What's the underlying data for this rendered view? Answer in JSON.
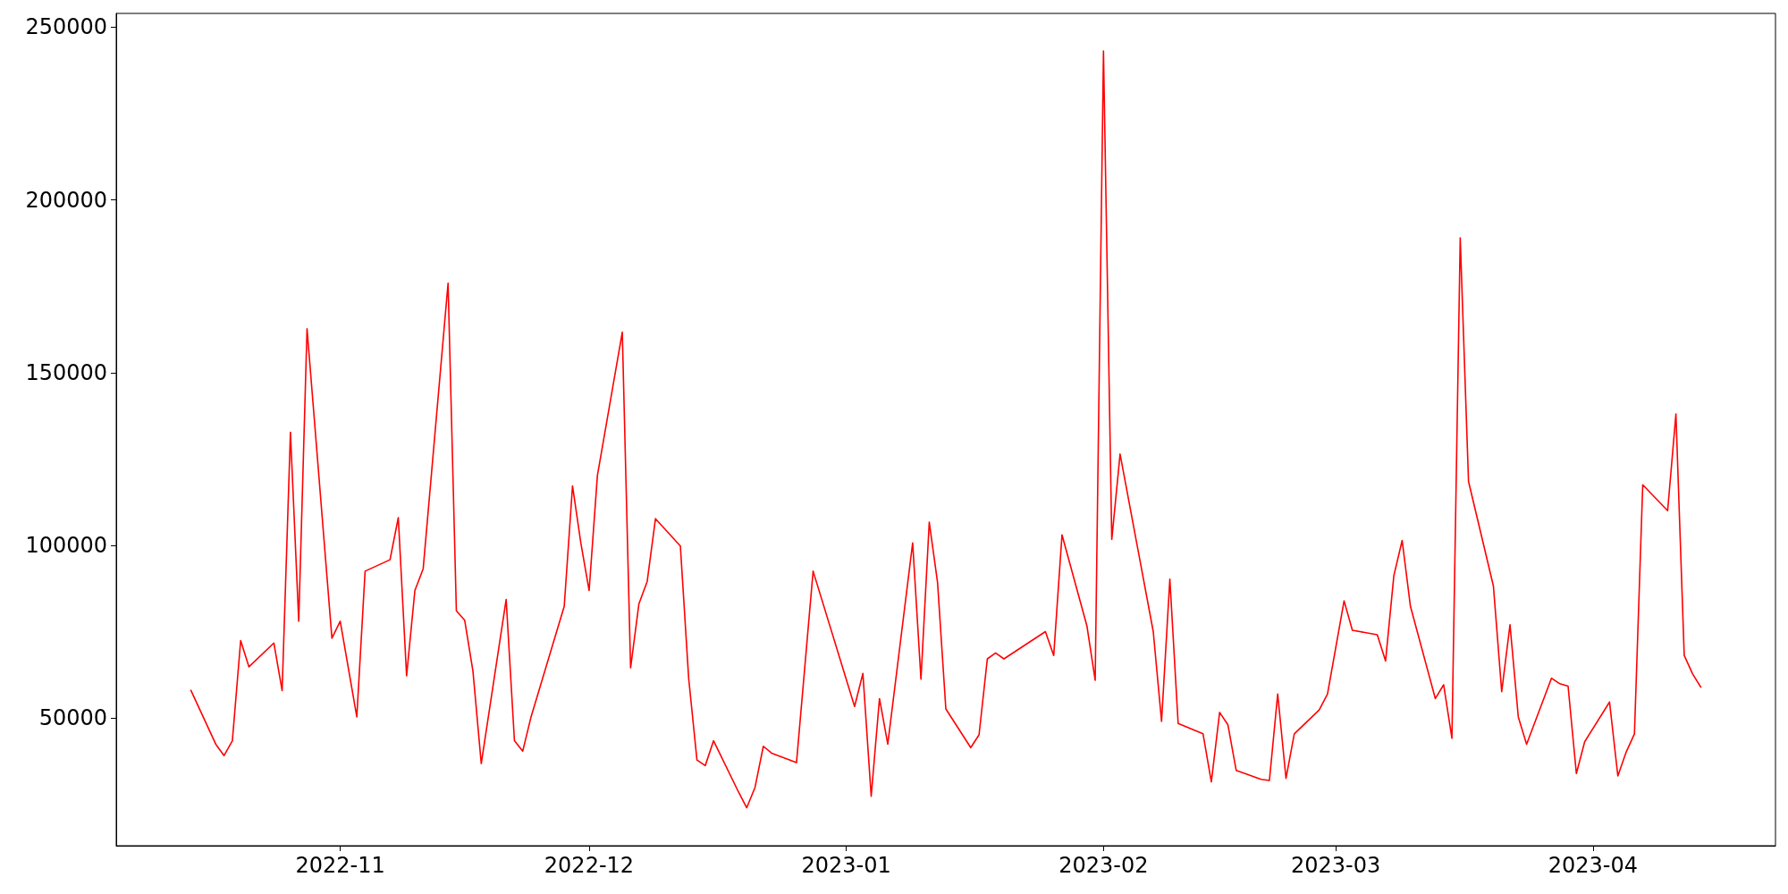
{
  "chart_data": {
    "type": "line",
    "x": [
      "2022-10-14",
      "2022-10-17",
      "2022-10-18",
      "2022-10-19",
      "2022-10-20",
      "2022-10-21",
      "2022-10-24",
      "2022-10-25",
      "2022-10-26",
      "2022-10-27",
      "2022-10-28",
      "2022-10-31",
      "2022-11-01",
      "2022-11-03",
      "2022-11-04",
      "2022-11-07",
      "2022-11-08",
      "2022-11-09",
      "2022-11-10",
      "2022-11-11",
      "2022-11-14",
      "2022-11-15",
      "2022-11-16",
      "2022-11-17",
      "2022-11-18",
      "2022-11-21",
      "2022-11-22",
      "2022-11-23",
      "2022-11-24",
      "2022-11-28",
      "2022-11-29",
      "2022-11-30",
      "2022-12-01",
      "2022-12-02",
      "2022-12-05",
      "2022-12-06",
      "2022-12-07",
      "2022-12-08",
      "2022-12-09",
      "2022-12-12",
      "2022-12-13",
      "2022-12-14",
      "2022-12-15",
      "2022-12-16",
      "2022-12-19",
      "2022-12-20",
      "2022-12-21",
      "2022-12-22",
      "2022-12-23",
      "2022-12-26",
      "2022-12-28",
      "2023-01-02",
      "2023-01-03",
      "2023-01-04",
      "2023-01-05",
      "2023-01-06",
      "2023-01-09",
      "2023-01-10",
      "2023-01-11",
      "2023-01-12",
      "2023-01-13",
      "2023-01-16",
      "2023-01-17",
      "2023-01-18",
      "2023-01-19",
      "2023-01-20",
      "2023-01-25",
      "2023-01-26",
      "2023-01-27",
      "2023-01-30",
      "2023-01-31",
      "2023-02-01",
      "2023-02-02",
      "2023-02-03",
      "2023-02-07",
      "2023-02-08",
      "2023-02-09",
      "2023-02-10",
      "2023-02-13",
      "2023-02-14",
      "2023-02-15",
      "2023-02-16",
      "2023-02-17",
      "2023-02-20",
      "2023-02-21",
      "2023-02-22",
      "2023-02-23",
      "2023-02-24",
      "2023-02-27",
      "2023-02-28",
      "2023-03-02",
      "2023-03-03",
      "2023-03-06",
      "2023-03-07",
      "2023-03-08",
      "2023-03-09",
      "2023-03-10",
      "2023-03-13",
      "2023-03-14",
      "2023-03-15",
      "2023-03-16",
      "2023-03-17",
      "2023-03-20",
      "2023-03-21",
      "2023-03-22",
      "2023-03-23",
      "2023-03-24",
      "2023-03-27",
      "2023-03-28",
      "2023-03-29",
      "2023-03-30",
      "2023-03-31",
      "2023-04-03",
      "2023-04-04",
      "2023-04-05",
      "2023-04-06",
      "2023-04-07",
      "2023-04-10",
      "2023-04-11",
      "2023-04-12",
      "2023-04-13",
      "2023-04-14"
    ],
    "series": [
      {
        "color": "#ff0000",
        "values": [
          58000,
          42400,
          39100,
          43400,
          72400,
          64800,
          71700,
          57900,
          132700,
          78000,
          162700,
          73100,
          78000,
          50300,
          92500,
          95800,
          108000,
          62200,
          86900,
          93200,
          175900,
          81000,
          78300,
          63500,
          36800,
          84300,
          43400,
          40400,
          50300,
          82300,
          117200,
          100700,
          86900,
          120200,
          161700,
          64500,
          83000,
          89500,
          107700,
          99800,
          61500,
          37800,
          36200,
          43400,
          28600,
          24000,
          29900,
          41800,
          39800,
          37100,
          92500,
          53300,
          62900,
          27300,
          55600,
          42400,
          100700,
          61200,
          106700,
          89200,
          52600,
          41400,
          45100,
          67100,
          68800,
          67100,
          75000,
          68100,
          103000,
          76700,
          60900,
          243100,
          101700,
          126400,
          75000,
          49000,
          90200,
          48400,
          45400,
          31500,
          51600,
          48000,
          34800,
          32200,
          31900,
          56900,
          32500,
          45400,
          52300,
          56900,
          83900,
          75400,
          74100,
          66500,
          91200,
          101400,
          82300,
          55600,
          59600,
          44100,
          189000,
          118500,
          88200,
          57600,
          77000,
          50300,
          42400,
          61500,
          59900,
          59200,
          33900,
          43100,
          54600,
          33200,
          40100,
          45400,
          117500,
          110000,
          138000,
          68100,
          62800,
          58900
        ]
      }
    ],
    "xlim": [
      "2022-10-05",
      "2023-04-23"
    ],
    "xticks": [
      {
        "value": "2022-11-01",
        "label": "2022-11"
      },
      {
        "value": "2022-12-01",
        "label": "2022-12"
      },
      {
        "value": "2023-01-01",
        "label": "2023-01"
      },
      {
        "value": "2023-02-01",
        "label": "2023-02"
      },
      {
        "value": "2023-03-01",
        "label": "2023-03"
      },
      {
        "value": "2023-04-01",
        "label": "2023-04"
      }
    ],
    "ylim": [
      13000,
      254000
    ],
    "yticks": [
      50000,
      100000,
      150000,
      200000,
      250000
    ],
    "grid": false,
    "marker": "none",
    "line_style": "solid"
  }
}
